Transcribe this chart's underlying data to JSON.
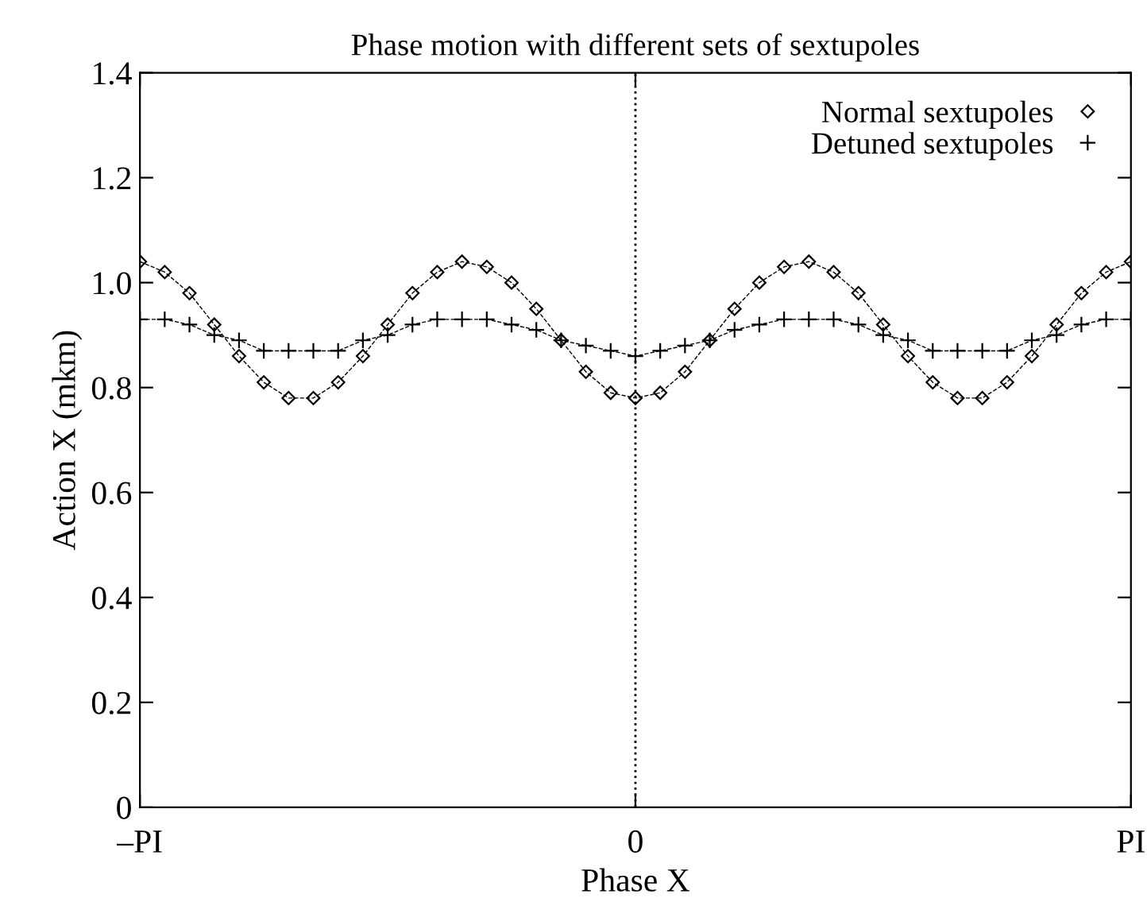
{
  "chart_data": {
    "type": "line",
    "title": "Phase motion with different sets of sextupoles",
    "xlabel": "Phase X",
    "ylabel": "Action X (mkm)",
    "categories": [
      "–PI",
      null,
      null,
      null,
      null,
      null,
      null,
      null,
      null,
      null,
      null,
      null,
      null,
      null,
      null,
      null,
      null,
      null,
      null,
      null,
      "0",
      null,
      null,
      null,
      null,
      null,
      null,
      null,
      null,
      null,
      null,
      null,
      null,
      null,
      null,
      null,
      null,
      null,
      null,
      null,
      "PI"
    ],
    "series": [
      {
        "name": "Normal sextupoles",
        "color": "#000000",
        "marker": "diamond",
        "values": [
          1.04,
          1.02,
          0.98,
          0.92,
          0.86,
          0.81,
          0.78,
          0.78,
          0.81,
          0.86,
          0.92,
          0.98,
          1.02,
          1.04,
          1.03,
          1.0,
          0.95,
          0.89,
          0.83,
          0.79,
          0.78,
          0.79,
          0.83,
          0.89,
          0.95,
          1.0,
          1.03,
          1.04,
          1.02,
          0.98,
          0.92,
          0.86,
          0.81,
          0.78,
          0.78,
          0.81,
          0.86,
          0.92,
          0.98,
          1.02,
          1.04
        ]
      },
      {
        "name": "Detuned sextupoles",
        "color": "#000000",
        "marker": "cross",
        "values": [
          0.93,
          0.93,
          0.92,
          0.9,
          0.89,
          0.87,
          0.87,
          0.87,
          0.87,
          0.89,
          0.9,
          0.92,
          0.93,
          0.93,
          0.93,
          0.92,
          0.91,
          0.89,
          0.88,
          0.87,
          0.86,
          0.87,
          0.88,
          0.89,
          0.91,
          0.92,
          0.93,
          0.93,
          0.93,
          0.92,
          0.9,
          0.89,
          0.87,
          0.87,
          0.87,
          0.87,
          0.89,
          0.9,
          0.92,
          0.93,
          0.93
        ]
      }
    ],
    "line_style": "dashed",
    "ylim": [
      0,
      1.4
    ],
    "yticks": [
      0,
      0.2,
      0.4,
      0.6,
      0.8,
      {
        "value": 1,
        "label": "1.0"
      },
      1.2,
      1.4
    ],
    "ref_lines": [
      {
        "axis": "x",
        "value": "0",
        "color": "#000000",
        "line_style": "dotted"
      }
    ],
    "legend": "top right",
    "grid": false
  }
}
